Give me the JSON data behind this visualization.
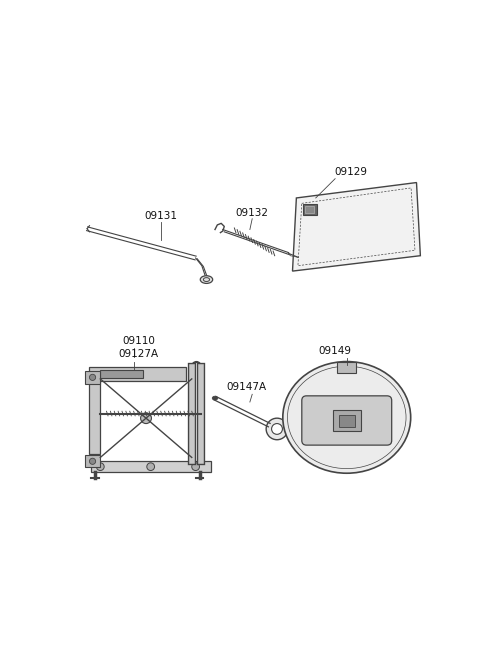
{
  "background_color": "#ffffff",
  "figure_width": 4.8,
  "figure_height": 6.55,
  "dpi": 100,
  "line_color": "#444444",
  "text_color": "#111111",
  "font_size": 7.5
}
